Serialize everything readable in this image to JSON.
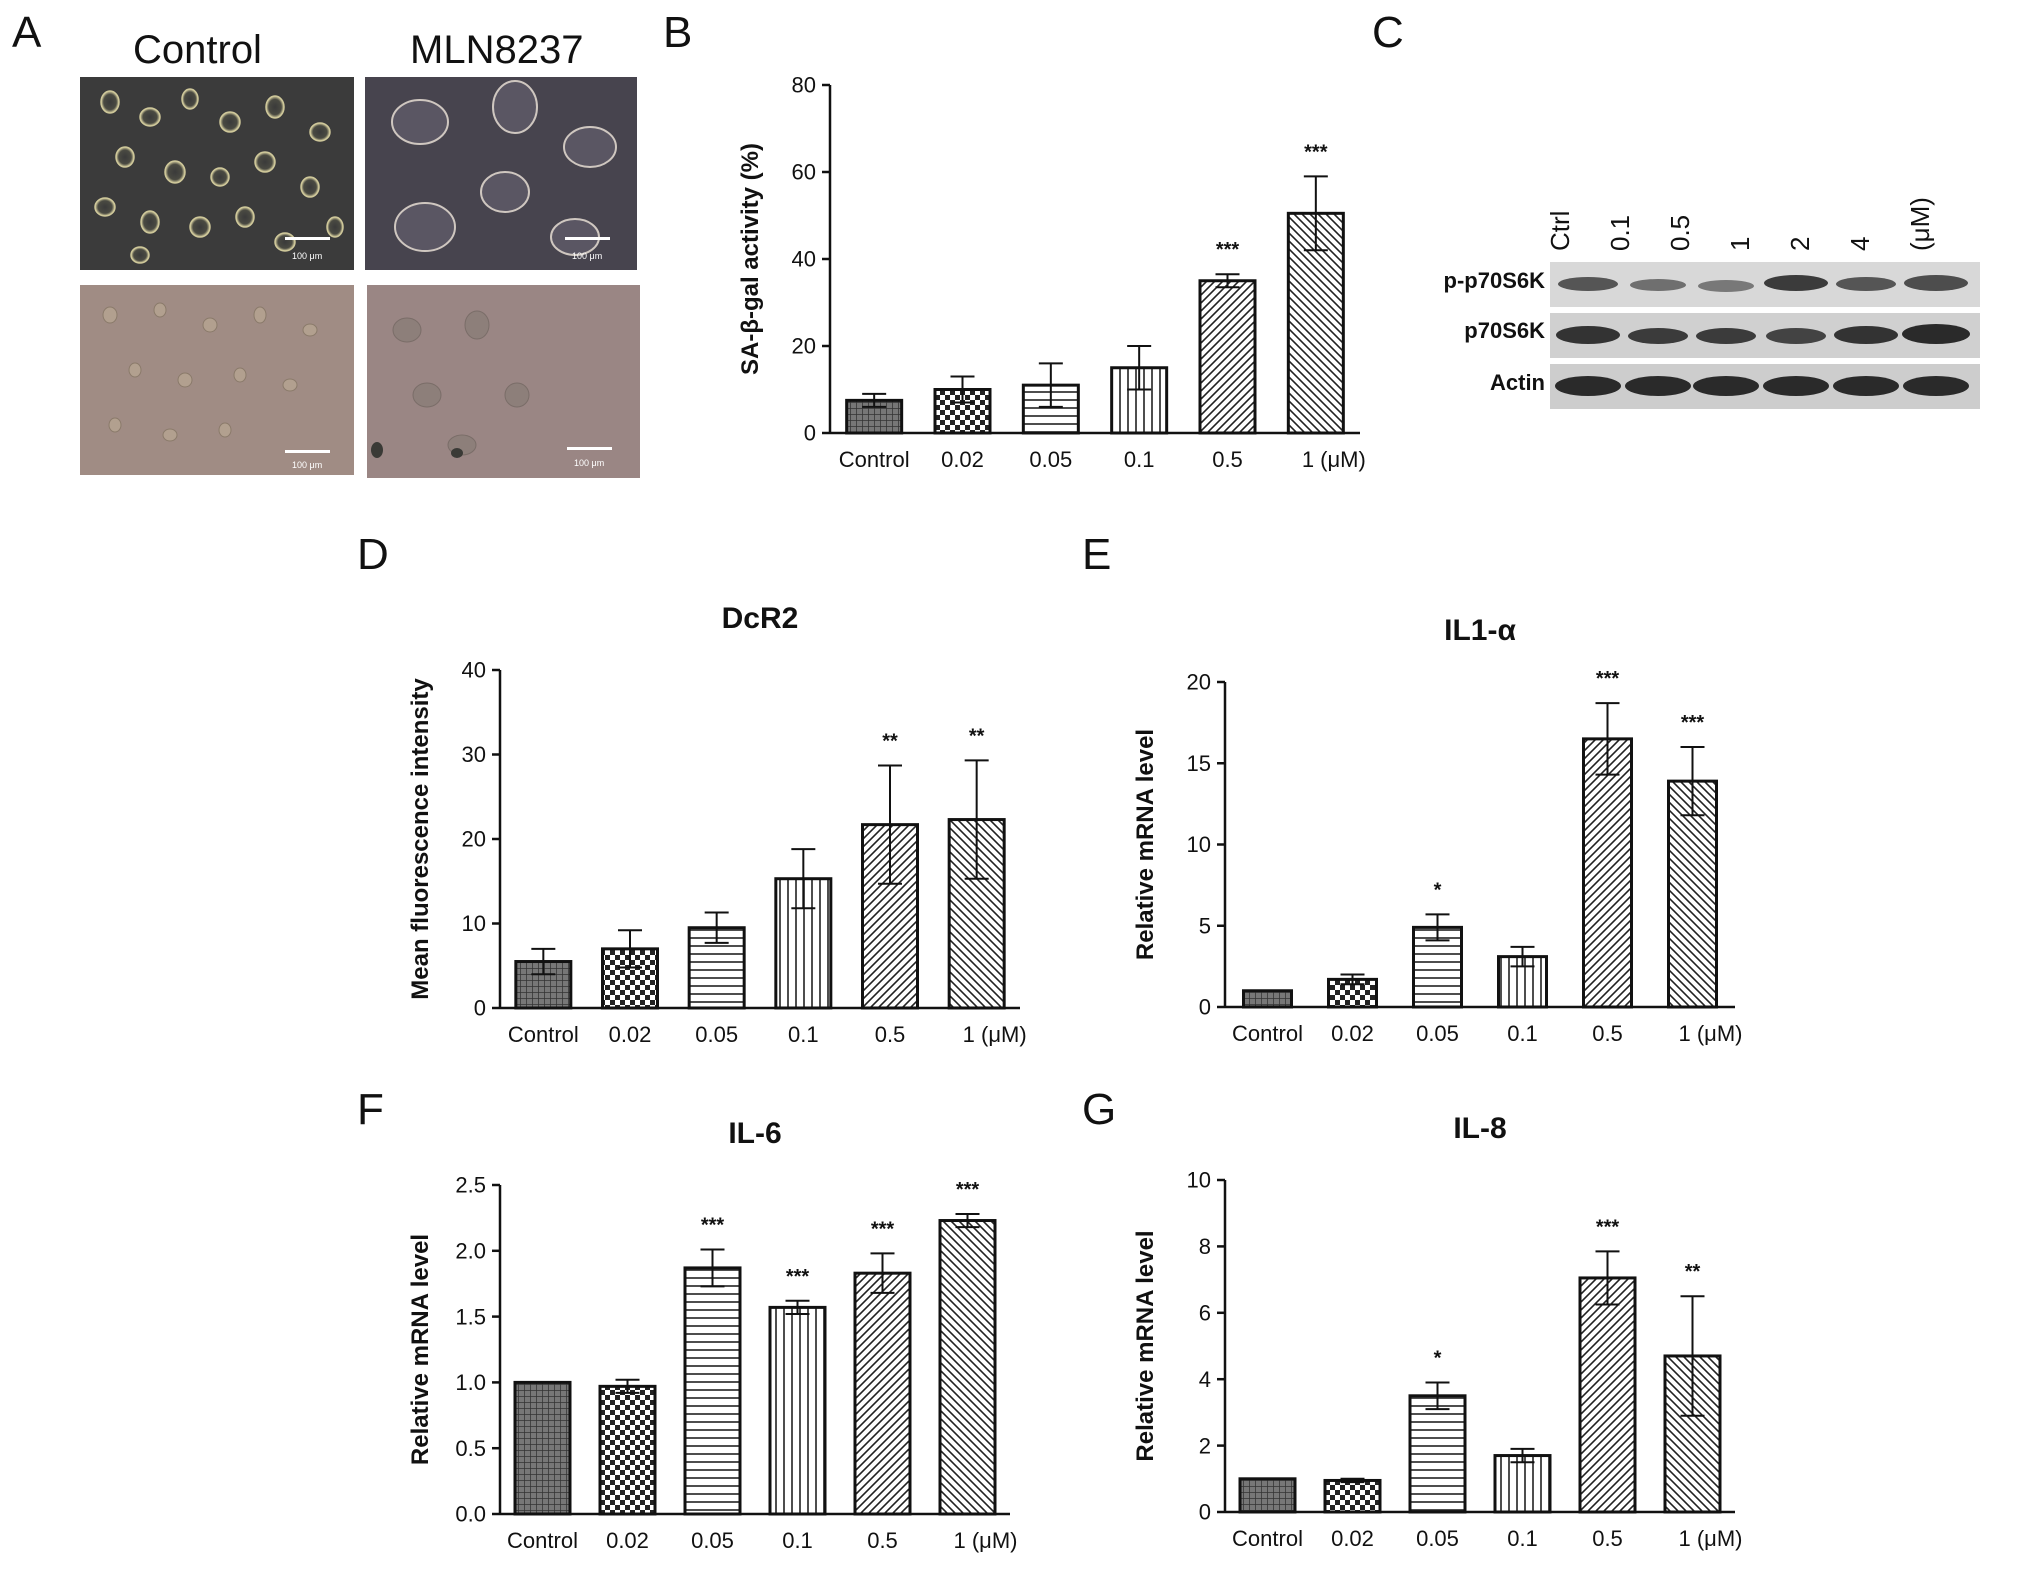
{
  "panels": {
    "A": {
      "letter": "A",
      "col_labels": [
        "Control",
        "MLN8237"
      ],
      "scale_bar": "100 μm"
    },
    "B": {
      "letter": "B"
    },
    "C": {
      "letter": "C",
      "lanes": [
        "Ctrl",
        "0.1",
        "0.5",
        "1",
        "2",
        "4"
      ],
      "unit": "(μM)",
      "rows": [
        "p-p70S6K",
        "p70S6K",
        "Actin"
      ]
    },
    "D": {
      "letter": "D"
    },
    "E": {
      "letter": "E"
    },
    "F": {
      "letter": "F"
    },
    "G": {
      "letter": "G"
    }
  },
  "colors": {
    "bar_fill": "#ffffff",
    "bar_stroke": "#111111",
    "control_fill": "#666666"
  },
  "chart_data": [
    {
      "id": "B",
      "type": "bar",
      "title": "",
      "categories": [
        "Control",
        "0.02",
        "0.05",
        "0.1",
        "0.5",
        "1 (μM)"
      ],
      "values": [
        7.5,
        10,
        11,
        15,
        35,
        50.5
      ],
      "errors": [
        1.5,
        3,
        5,
        5,
        1.5,
        8.5
      ],
      "significance": [
        "",
        "",
        "",
        "",
        "***",
        "***"
      ],
      "ylabel": "SA-β-gal activity (%)",
      "xlabel": "",
      "ylim": [
        0,
        80
      ],
      "yticks": [
        "0",
        "20",
        "40",
        "60",
        "80"
      ],
      "ytick_values": [
        0,
        20,
        40,
        60,
        80
      ]
    },
    {
      "id": "D",
      "type": "bar",
      "title": "DcR2",
      "categories": [
        "Control",
        "0.02",
        "0.05",
        "0.1",
        "0.5",
        "1 (μM)"
      ],
      "values": [
        5.5,
        7,
        9.5,
        15.3,
        21.7,
        22.3
      ],
      "errors": [
        1.5,
        2.2,
        1.8,
        3.5,
        7,
        7
      ],
      "significance": [
        "",
        "",
        "",
        "",
        "**",
        "**"
      ],
      "ylabel": "Mean fluorescence intensity",
      "xlabel": "",
      "ylim": [
        0,
        40
      ],
      "yticks": [
        "0",
        "10",
        "20",
        "30",
        "40"
      ],
      "ytick_values": [
        0,
        10,
        20,
        30,
        40
      ]
    },
    {
      "id": "E",
      "type": "bar",
      "title": "IL1-α",
      "categories": [
        "Control",
        "0.02",
        "0.05",
        "0.1",
        "0.5",
        "1 (μM)"
      ],
      "values": [
        1.0,
        1.7,
        4.9,
        3.1,
        16.5,
        13.9
      ],
      "errors": [
        0,
        0.3,
        0.8,
        0.6,
        2.2,
        2.1
      ],
      "significance": [
        "",
        "",
        "*",
        "",
        "***",
        "***"
      ],
      "ylabel": "Relative mRNA level",
      "xlabel": "",
      "ylim": [
        0,
        20
      ],
      "yticks": [
        "0",
        "5",
        "10",
        "15",
        "20"
      ],
      "ytick_values": [
        0,
        5,
        10,
        15,
        20
      ]
    },
    {
      "id": "F",
      "type": "bar",
      "title": "IL-6",
      "categories": [
        "Control",
        "0.02",
        "0.05",
        "0.1",
        "0.5",
        "1 (μM)"
      ],
      "values": [
        1.0,
        0.97,
        1.87,
        1.57,
        1.83,
        2.23
      ],
      "errors": [
        0,
        0.05,
        0.14,
        0.05,
        0.15,
        0.05
      ],
      "significance": [
        "",
        "",
        "***",
        "***",
        "***",
        "***"
      ],
      "ylabel": "Relative mRNA level",
      "xlabel": "",
      "ylim": [
        0,
        2.5
      ],
      "yticks": [
        "0.0",
        "0.5",
        "1.0",
        "1.5",
        "2.0",
        "2.5"
      ],
      "ytick_values": [
        0,
        0.5,
        1,
        1.5,
        2,
        2.5
      ]
    },
    {
      "id": "G",
      "type": "bar",
      "title": "IL-8",
      "categories": [
        "Control",
        "0.02",
        "0.05",
        "0.1",
        "0.5",
        "1 (μM)"
      ],
      "values": [
        1.0,
        0.95,
        3.5,
        1.7,
        7.05,
        4.7
      ],
      "errors": [
        0,
        0.05,
        0.4,
        0.2,
        0.8,
        1.8
      ],
      "significance": [
        "",
        "",
        "*",
        "",
        "***",
        "**"
      ],
      "ylabel": "Relative mRNA level",
      "xlabel": "",
      "ylim": [
        0,
        10
      ],
      "yticks": [
        "0",
        "2",
        "4",
        "6",
        "8",
        "10"
      ],
      "ytick_values": [
        0,
        2,
        4,
        6,
        8,
        10
      ]
    }
  ]
}
